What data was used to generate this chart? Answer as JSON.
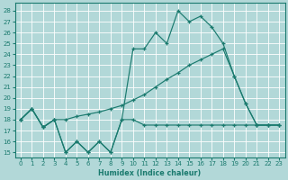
{
  "xlabel": "Humidex (Indice chaleur)",
  "bg_color": "#b2d8d8",
  "grid_color": "#ffffff",
  "line_color": "#1a7a6e",
  "xlim": [
    -0.5,
    23.5
  ],
  "ylim_min": 14.5,
  "ylim_max": 28.7,
  "yticks": [
    15,
    16,
    17,
    18,
    19,
    20,
    21,
    22,
    23,
    24,
    25,
    26,
    27,
    28
  ],
  "xticks": [
    0,
    1,
    2,
    3,
    4,
    5,
    6,
    7,
    8,
    9,
    10,
    11,
    12,
    13,
    14,
    15,
    16,
    17,
    18,
    19,
    20,
    21,
    22,
    23
  ],
  "line_min_x": [
    0,
    1,
    2,
    3,
    4,
    5,
    6,
    7,
    8,
    9,
    10,
    11,
    12,
    13,
    14,
    15,
    16,
    17,
    18,
    19,
    20,
    21,
    22,
    23
  ],
  "line_min_y": [
    18.0,
    19.0,
    17.3,
    18.0,
    15.0,
    16.0,
    15.0,
    16.0,
    15.0,
    18.0,
    18.0,
    17.5,
    17.5,
    17.5,
    17.5,
    17.5,
    17.5,
    17.5,
    17.5,
    17.5,
    17.5,
    17.5,
    17.5,
    17.5
  ],
  "line_max_x": [
    0,
    1,
    2,
    3,
    4,
    5,
    6,
    7,
    8,
    9,
    10,
    11,
    12,
    13,
    14,
    15,
    16,
    17,
    18,
    19,
    20,
    21,
    22,
    23
  ],
  "line_max_y": [
    18.0,
    19.0,
    17.3,
    18.0,
    15.0,
    16.0,
    15.0,
    16.0,
    15.0,
    18.0,
    24.5,
    24.5,
    26.0,
    25.0,
    28.0,
    27.0,
    27.5,
    26.5,
    25.0,
    22.0,
    19.5,
    17.5,
    17.5,
    17.5
  ],
  "line_avg_x": [
    0,
    1,
    2,
    3,
    4,
    5,
    6,
    7,
    8,
    9,
    10,
    11,
    12,
    13,
    14,
    15,
    16,
    17,
    18,
    19,
    20,
    21,
    22,
    23
  ],
  "line_avg_y": [
    18.0,
    19.0,
    17.3,
    18.0,
    18.0,
    18.3,
    18.5,
    18.7,
    19.0,
    19.3,
    19.8,
    20.3,
    21.0,
    21.7,
    22.3,
    23.0,
    23.5,
    24.0,
    24.5,
    22.0,
    19.5,
    17.5,
    17.5,
    17.5
  ]
}
